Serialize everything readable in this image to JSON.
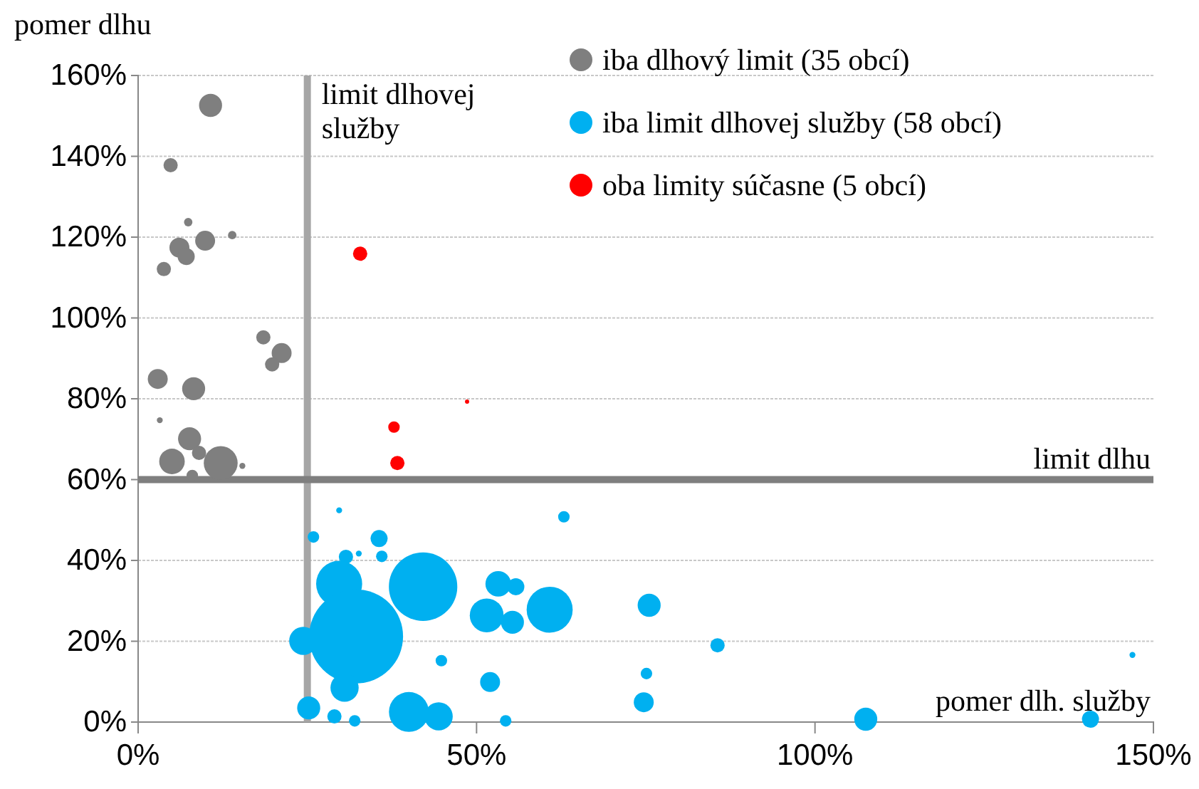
{
  "chart_data": {
    "type": "bubble",
    "xlabel": "pomer dlh. služby",
    "ylabel": "pomer dlhu",
    "xlim": [
      0,
      150
    ],
    "ylim": [
      0,
      160
    ],
    "xticks": [
      {
        "value": 0,
        "label": "0%"
      },
      {
        "value": 50,
        "label": "50%"
      },
      {
        "value": 100,
        "label": "100%"
      },
      {
        "value": 150,
        "label": "150%"
      }
    ],
    "yticks": [
      {
        "value": 0,
        "label": "0%"
      },
      {
        "value": 20,
        "label": "20%"
      },
      {
        "value": 40,
        "label": "40%"
      },
      {
        "value": 60,
        "label": "60%"
      },
      {
        "value": 80,
        "label": "80%"
      },
      {
        "value": 100,
        "label": "100%"
      },
      {
        "value": 120,
        "label": "120%"
      },
      {
        "value": 140,
        "label": "140%"
      },
      {
        "value": 160,
        "label": "160%"
      }
    ],
    "grid": "y",
    "legend": "top right",
    "ref_lines": [
      {
        "axis": "x",
        "value": 25,
        "label": "limit dlhovej služby",
        "color": "#a6a6a6"
      },
      {
        "axis": "y",
        "value": 60,
        "label": "limit dlhu",
        "color": "#7f7f7f"
      }
    ],
    "series": [
      {
        "name": "iba dlhový limit (35 obcí)",
        "color": "#7f7f7f",
        "x": [
          10.7,
          4.8,
          7.4,
          9.9,
          13.9,
          6.1,
          7.1,
          3.8,
          18.5,
          21.2,
          19.8,
          2.9,
          8.2,
          3.2,
          7.6,
          9.0,
          5.0,
          12.2,
          8.0,
          15.4
        ],
        "values": [
          152.6,
          137.8,
          123.7,
          119.1,
          120.5,
          117.4,
          115.2,
          112.1,
          95.2,
          91.3,
          88.5,
          84.9,
          82.5,
          74.7,
          70.1,
          66.6,
          64.5,
          64.1,
          61.0,
          63.4
        ],
        "sizes": [
          0.06,
          0.023,
          0.008,
          0.045,
          0.008,
          0.045,
          0.033,
          0.023,
          0.023,
          0.045,
          0.023,
          0.045,
          0.06,
          0.004,
          0.06,
          0.023,
          0.074,
          0.13,
          0.015,
          0.004
        ]
      },
      {
        "name": "iba limit dlhovej služby (58 obcí)",
        "color": "#00b0f0",
        "x": [
          29.7,
          62.9,
          25.9,
          35.6,
          32.6,
          30.7,
          36.0,
          29.7,
          42.1,
          53.2,
          55.8,
          32.2,
          24.4,
          51.5,
          55.3,
          60.8,
          44.8,
          30.5,
          52.0,
          25.2,
          40.0,
          29.0,
          32.0,
          44.4,
          54.3,
          75.5,
          85.6,
          75.1,
          74.7,
          107.5,
          140.7,
          146.9
        ],
        "values": [
          52.4,
          50.8,
          45.8,
          45.4,
          41.7,
          40.9,
          41.0,
          34.2,
          33.5,
          34.2,
          33.5,
          21.2,
          20.1,
          26.4,
          24.7,
          27.8,
          15.2,
          8.5,
          9.9,
          3.5,
          2.5,
          1.4,
          0.3,
          1.4,
          0.3,
          28.9,
          19.0,
          12.0,
          4.9,
          0.7,
          0.7,
          16.6
        ],
        "sizes": [
          0.004,
          0.015,
          0.015,
          0.033,
          0.004,
          0.023,
          0.015,
          0.24,
          0.53,
          0.074,
          0.033,
          1,
          0.09,
          0.13,
          0.06,
          0.24,
          0.015,
          0.09,
          0.045,
          0.06,
          0.18,
          0.023,
          0.015,
          0.09,
          0.015,
          0.06,
          0.023,
          0.015,
          0.045,
          0.06,
          0.033,
          0.004
        ]
      },
      {
        "name": "oba limity súčasne (5 obcí)",
        "color": "#ff0000",
        "x": [
          32.8,
          37.8,
          38.3,
          48.6
        ],
        "values": [
          115.9,
          73.0,
          64.1,
          79.3
        ],
        "sizes": [
          0.023,
          0.015,
          0.023,
          0.002
        ]
      }
    ]
  }
}
